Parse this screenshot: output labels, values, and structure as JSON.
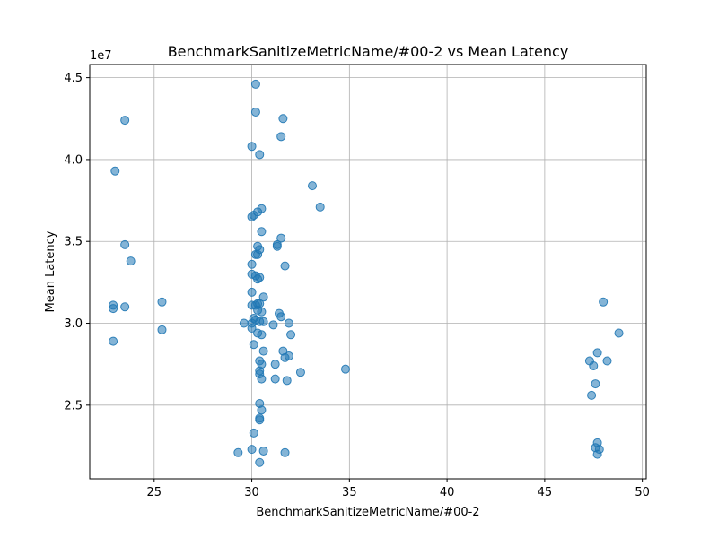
{
  "chart_data": {
    "type": "scatter",
    "title": "BenchmarkSanitizeMetricName/#00-2 vs Mean Latency",
    "xlabel": "BenchmarkSanitizeMetricName/#00-2",
    "ylabel": "Mean Latency",
    "offset_text": "1e7",
    "xlim": [
      21.7,
      50.2
    ],
    "ylim": [
      20500000,
      45800000
    ],
    "x_ticks": [
      25,
      30,
      35,
      40,
      45,
      50
    ],
    "y_ticks": [
      25000000,
      30000000,
      35000000,
      40000000,
      45000000
    ],
    "y_tick_labels": [
      "2.5",
      "3.0",
      "3.5",
      "4.0",
      "4.5"
    ],
    "grid": true,
    "point_color": "#1f77b4",
    "points": [
      [
        23.5,
        42400000
      ],
      [
        23.0,
        39300000
      ],
      [
        23.5,
        34800000
      ],
      [
        23.8,
        33800000
      ],
      [
        22.9,
        31100000
      ],
      [
        22.9,
        30900000
      ],
      [
        23.5,
        31000000
      ],
      [
        22.9,
        28900000
      ],
      [
        25.4,
        31300000
      ],
      [
        25.4,
        29600000
      ],
      [
        30.2,
        44600000
      ],
      [
        30.2,
        42900000
      ],
      [
        31.6,
        42500000
      ],
      [
        31.5,
        41400000
      ],
      [
        30.0,
        40800000
      ],
      [
        30.4,
        40300000
      ],
      [
        33.1,
        38400000
      ],
      [
        33.5,
        37100000
      ],
      [
        30.5,
        37000000
      ],
      [
        30.3,
        36800000
      ],
      [
        30.1,
        36600000
      ],
      [
        30.0,
        36500000
      ],
      [
        30.5,
        35600000
      ],
      [
        31.5,
        35200000
      ],
      [
        31.3,
        34800000
      ],
      [
        31.3,
        34700000
      ],
      [
        30.3,
        34700000
      ],
      [
        30.4,
        34500000
      ],
      [
        30.3,
        34200000
      ],
      [
        30.2,
        34200000
      ],
      [
        30.0,
        33600000
      ],
      [
        31.7,
        33500000
      ],
      [
        30.0,
        33000000
      ],
      [
        30.2,
        32900000
      ],
      [
        30.4,
        32800000
      ],
      [
        30.3,
        32700000
      ],
      [
        30.0,
        31900000
      ],
      [
        30.6,
        31600000
      ],
      [
        30.4,
        31200000
      ],
      [
        30.3,
        31200000
      ],
      [
        30.2,
        31100000
      ],
      [
        30.0,
        31100000
      ],
      [
        30.3,
        30800000
      ],
      [
        30.5,
        30700000
      ],
      [
        31.4,
        30600000
      ],
      [
        31.5,
        30400000
      ],
      [
        30.1,
        30300000
      ],
      [
        30.2,
        30200000
      ],
      [
        30.4,
        30100000
      ],
      [
        30.6,
        30100000
      ],
      [
        29.6,
        30000000
      ],
      [
        30.0,
        30000000
      ],
      [
        31.9,
        30000000
      ],
      [
        31.1,
        29900000
      ],
      [
        30.0,
        29700000
      ],
      [
        30.3,
        29400000
      ],
      [
        30.5,
        29300000
      ],
      [
        32.0,
        29300000
      ],
      [
        30.1,
        28700000
      ],
      [
        31.6,
        28300000
      ],
      [
        30.6,
        28300000
      ],
      [
        31.7,
        27900000
      ],
      [
        31.9,
        28000000
      ],
      [
        30.4,
        27700000
      ],
      [
        30.5,
        27500000
      ],
      [
        31.2,
        27500000
      ],
      [
        30.4,
        27100000
      ],
      [
        30.4,
        26900000
      ],
      [
        32.5,
        27000000
      ],
      [
        34.8,
        27200000
      ],
      [
        30.5,
        26600000
      ],
      [
        31.2,
        26600000
      ],
      [
        31.8,
        26500000
      ],
      [
        30.4,
        25100000
      ],
      [
        30.5,
        24700000
      ],
      [
        30.4,
        24200000
      ],
      [
        30.4,
        24100000
      ],
      [
        30.1,
        23300000
      ],
      [
        29.3,
        22100000
      ],
      [
        30.0,
        22300000
      ],
      [
        30.6,
        22200000
      ],
      [
        31.7,
        22100000
      ],
      [
        30.4,
        21500000
      ],
      [
        48.0,
        31300000
      ],
      [
        48.8,
        29400000
      ],
      [
        47.7,
        28200000
      ],
      [
        47.3,
        27700000
      ],
      [
        48.2,
        27700000
      ],
      [
        47.5,
        27400000
      ],
      [
        47.6,
        26300000
      ],
      [
        47.4,
        25600000
      ],
      [
        47.7,
        22700000
      ],
      [
        47.6,
        22400000
      ],
      [
        47.8,
        22300000
      ],
      [
        47.7,
        22000000
      ]
    ]
  }
}
